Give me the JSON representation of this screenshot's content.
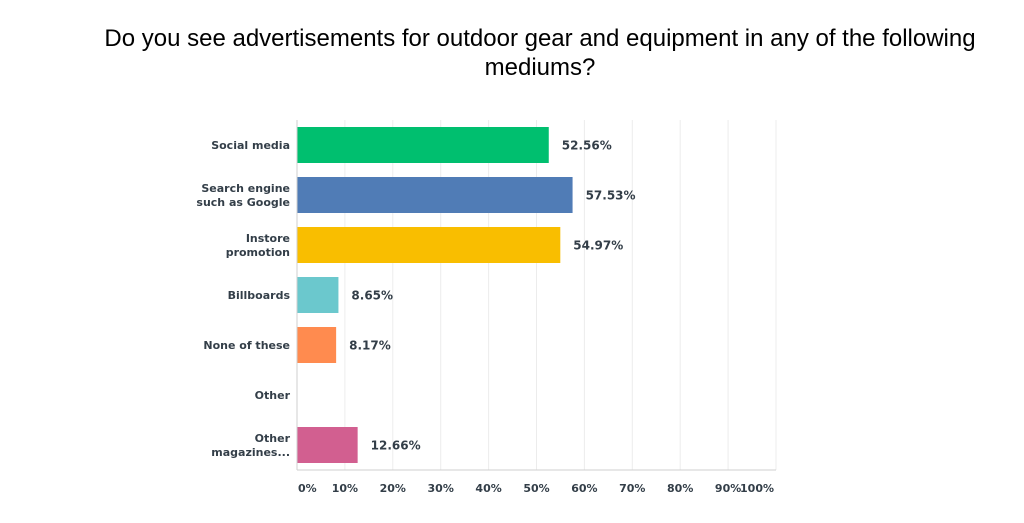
{
  "chart_data": {
    "type": "bar",
    "orientation": "horizontal",
    "title": "Do you see advertisements for outdoor gear and equipment in any of the following mediums?",
    "categories": [
      [
        "Social media"
      ],
      [
        "Search engine",
        "such as Google"
      ],
      [
        "Instore",
        "promotion"
      ],
      [
        "Billboards"
      ],
      [
        "None of these"
      ],
      [
        "Other"
      ],
      [
        "Other",
        "magazines..."
      ]
    ],
    "values": [
      52.56,
      57.53,
      54.97,
      8.65,
      8.17,
      0,
      12.66
    ],
    "value_labels": [
      "52.56%",
      "57.53%",
      "54.97%",
      "8.65%",
      "8.17%",
      "",
      "12.66%"
    ],
    "colors": [
      "#00bf6f",
      "#507cb6",
      "#f9be00",
      "#6bc8cd",
      "#ff8b4f",
      "#7d5ea0",
      "#d25f90"
    ],
    "xlim": [
      0,
      100
    ],
    "x_ticks": [
      "0%",
      "10%",
      "20%",
      "30%",
      "40%",
      "50%",
      "60%",
      "70%",
      "80%",
      "90%",
      "100%"
    ],
    "grid": true
  }
}
